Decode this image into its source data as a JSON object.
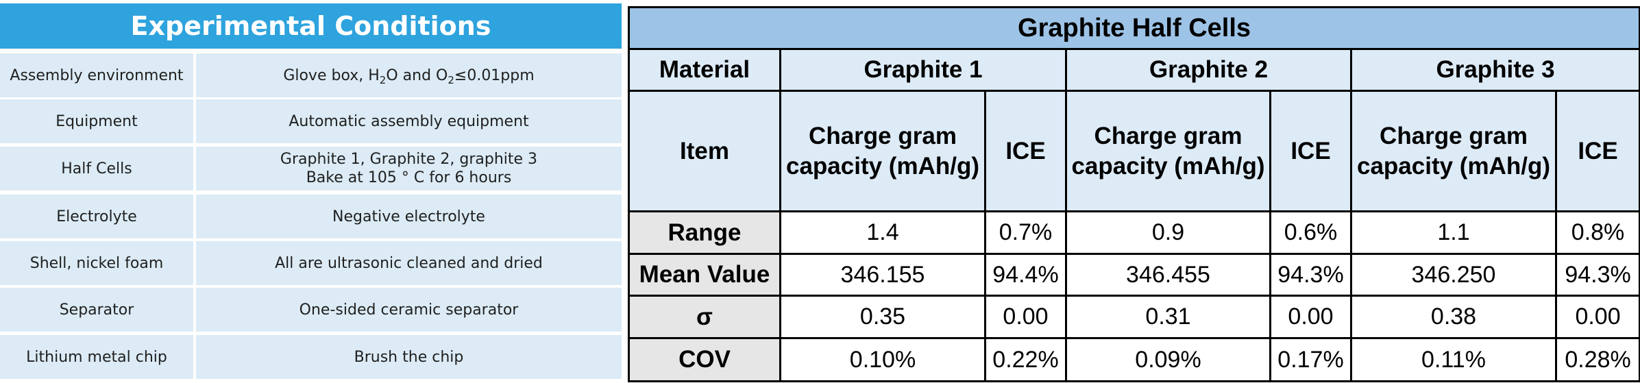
{
  "conditions": {
    "title": "Experimental Conditions",
    "rows": [
      {
        "label": "Assembly environment",
        "value_parts": [
          "Glove box, H",
          "2",
          "O and O",
          "2",
          "≤0.01ppm"
        ]
      },
      {
        "label": "Equipment",
        "value": "Automatic assembly equipment"
      },
      {
        "label": "Half Cells",
        "value_line1": "Graphite 1, Graphite 2, graphite 3",
        "value_line2": "Bake at 105 ° C for 6 hours"
      },
      {
        "label": "Electrolyte",
        "value": "Negative electrolyte"
      },
      {
        "label": "Shell, nickel foam",
        "value": "All are ultrasonic cleaned and dried"
      },
      {
        "label": "Separator",
        "value": "One-sided ceramic separator"
      },
      {
        "label": "Lithium metal chip",
        "value": "Brush the chip"
      }
    ]
  },
  "half_cells": {
    "title": "Graphite Half Cells",
    "material_label": "Material",
    "item_label": "Item",
    "materials": [
      "Graphite 1",
      "Graphite 2",
      "Graphite 3"
    ],
    "sub_headers": {
      "capacity_line1": "Charge gram",
      "capacity_line2": "capacity (mAh/g)",
      "ice": "ICE"
    },
    "rows": [
      {
        "label": "Range",
        "values": [
          "1.4",
          "0.7%",
          "0.9",
          "0.6%",
          "1.1",
          "0.8%"
        ]
      },
      {
        "label": "Mean Value",
        "values": [
          "346.155",
          "94.4%",
          "346.455",
          "94.3%",
          "346.250",
          "94.3%"
        ]
      },
      {
        "label": "σ",
        "values": [
          "0.35",
          "0.00",
          "0.31",
          "0.00",
          "0.38",
          "0.00"
        ]
      },
      {
        "label": "COV",
        "values": [
          "0.10%",
          "0.22%",
          "0.09%",
          "0.17%",
          "0.11%",
          "0.28%"
        ]
      }
    ]
  },
  "colors": {
    "left_header_bg": "#2ea3dd",
    "left_cell_bg": "#dcebf5",
    "right_title_bg": "#9dc3e6",
    "right_header_bg": "#ddebf7",
    "right_rowhead_bg": "#e7e6e6"
  }
}
